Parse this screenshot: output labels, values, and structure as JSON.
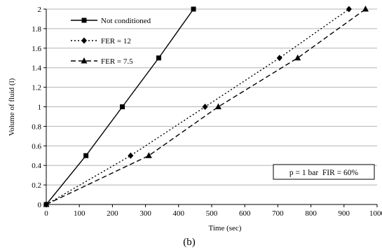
{
  "chart_data": {
    "type": "line",
    "title": "",
    "xlabel": "Time (sec)",
    "ylabel": "Volume of fluid (l)",
    "xlim": [
      0,
      1000
    ],
    "ylim": [
      0,
      2
    ],
    "xticks": [
      0,
      100,
      200,
      300,
      400,
      500,
      600,
      700,
      800,
      900,
      1000
    ],
    "yticks": [
      0,
      0.2,
      0.4,
      0.6,
      0.8,
      1,
      1.2,
      1.4,
      1.6,
      1.8,
      2
    ],
    "grid": "horizontal",
    "legend_position": "top-left",
    "series": [
      {
        "name": "Not conditioned",
        "line_style": "solid",
        "marker": "square",
        "x": [
          0,
          120,
          230,
          340,
          445
        ],
        "y": [
          0,
          0.5,
          1.0,
          1.5,
          2.0
        ]
      },
      {
        "name": "FER = 12",
        "line_style": "dotted",
        "marker": "diamond",
        "x": [
          0,
          255,
          480,
          705,
          915
        ],
        "y": [
          0,
          0.5,
          1.0,
          1.5,
          2.0
        ]
      },
      {
        "name": "FER = 7.5",
        "line_style": "dashed",
        "marker": "triangle",
        "x": [
          0,
          310,
          520,
          760,
          965
        ],
        "y": [
          0,
          0.5,
          1.0,
          1.5,
          2.0
        ]
      }
    ],
    "annotation": "p = 1 bar  FIR = 60%"
  },
  "caption": "(b)",
  "colors": {
    "line": "#000000",
    "grid": "#b3b3b3",
    "background": "#ffffff"
  }
}
